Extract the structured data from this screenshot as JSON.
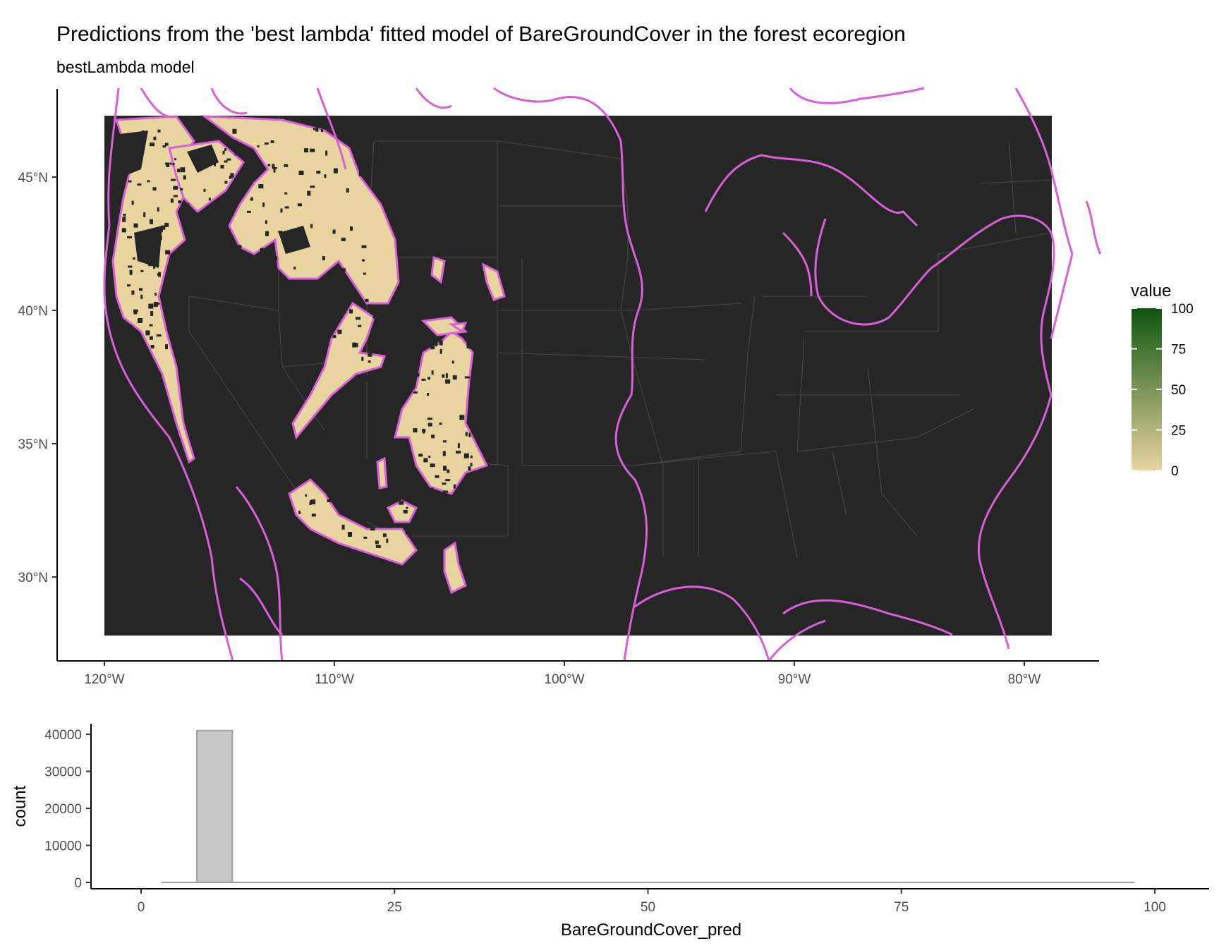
{
  "title": "Predictions from the 'best lambda' fitted model of BareGroundCover in the forest ecoregion",
  "subtitle": "bestLambda model",
  "colors": {
    "panel_background": "#262626",
    "outline": "#d95fd9",
    "state_lines": "#4a4a4a",
    "low": "#e8d49e",
    "high": "#0d5510",
    "histogram_fill": "#c8c8c8",
    "histogram_stroke": "#a0a0a0"
  },
  "chart_data": [
    {
      "type": "heatmap",
      "title": "Predictions from the 'best lambda' fitted model of BareGroundCover in the forest ecoregion",
      "subtitle": "bestLambda model",
      "x_ticks": [
        "120°W",
        "110°W",
        "100°W",
        "90°W",
        "80°W"
      ],
      "y_ticks": [
        "30°N",
        "35°N",
        "40°N",
        "45°N"
      ],
      "x_range": [
        -120,
        -79
      ],
      "y_range": [
        27.8,
        47.3
      ],
      "legend": {
        "title": "value",
        "min": 0,
        "max": 100,
        "ticks": [
          "0",
          "25",
          "50",
          "75",
          "100"
        ],
        "low_color": "#e8d49e",
        "high_color": "#0d5510",
        "position": "right"
      },
      "grid": false
    },
    {
      "type": "bar",
      "xlabel": "BareGroundCover_pred",
      "ylabel": "count",
      "x_ticks": [
        "0",
        "25",
        "50",
        "75",
        "100"
      ],
      "y_ticks": [
        "0",
        "10000",
        "20000",
        "30000",
        "40000"
      ],
      "xlim": [
        -2,
        102
      ],
      "ylim": [
        0,
        42000
      ],
      "bins": [
        {
          "x0": 5.5,
          "x1": 9,
          "count": 41000
        },
        {
          "x0": 2,
          "x1": 98,
          "count": 0
        }
      ],
      "grid": false
    }
  ]
}
